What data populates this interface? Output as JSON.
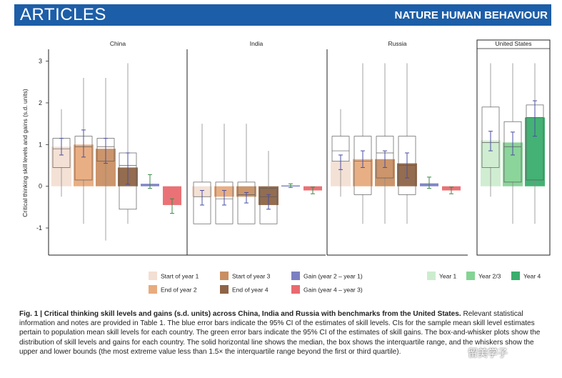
{
  "header": {
    "section": "ARTICLES",
    "journal": "NATURE HUMAN BEHAVIOUR"
  },
  "colors": {
    "header_bar": "#1d5ea8",
    "start_year_1": "#f3dfd3",
    "end_year_2": "#e8ab7d",
    "start_year_3": "#c98f63",
    "end_year_4": "#8e6446",
    "gain_1_2": "#7b80c1",
    "gain_4_3": "#e96a6f",
    "us_year_1": "#cdeccf",
    "us_year_2_3": "#85d395",
    "us_year_4": "#3aae6d",
    "ci_blue": "#4a4fa3",
    "ci_green": "#3a8a45"
  },
  "chart_data": {
    "type": "bar",
    "ylabel": "Critical thinking skill levels and gains (s.d. units)",
    "ylim": [
      -1.65,
      3.25
    ],
    "yticks": [
      -1,
      0,
      1,
      2,
      3
    ],
    "legend": [
      {
        "label": "Start of year 1",
        "key": "start_year_1"
      },
      {
        "label": "End of year 2",
        "key": "end_year_2"
      },
      {
        "label": "Start of year 3",
        "key": "start_year_3"
      },
      {
        "label": "End of year 4",
        "key": "end_year_4"
      },
      {
        "label": "Gain (year 2 – year 1)",
        "key": "gain_1_2"
      },
      {
        "label": "Gain (year 4 – year 3)",
        "key": "gain_4_3"
      },
      {
        "label": "Year 1",
        "key": "us_year_1"
      },
      {
        "label": "Year 2/3",
        "key": "us_year_2_3"
      },
      {
        "label": "Year 4",
        "key": "us_year_4"
      }
    ],
    "panels": [
      {
        "title": "China",
        "bars": [
          {
            "key": "start_year_1",
            "value": 0.95,
            "ci": [
              0.75,
              1.15
            ],
            "box": {
              "q1": 0.45,
              "median": 0.9,
              "q3": 1.15,
              "min": -0.25,
              "max": 1.85
            }
          },
          {
            "key": "end_year_2",
            "value": 1.0,
            "ci": [
              0.7,
              1.35
            ],
            "box": {
              "q1": 0.15,
              "median": 0.95,
              "q3": 1.2,
              "min": -0.9,
              "max": 2.6
            }
          },
          {
            "key": "start_year_3",
            "value": 0.9,
            "ci": [
              0.55,
              1.15
            ],
            "box": {
              "q1": 0.6,
              "median": 0.95,
              "q3": 1.15,
              "min": -1.3,
              "max": 2.6
            }
          },
          {
            "key": "end_year_4",
            "value": 0.45,
            "ci": [
              0.05,
              0.8
            ],
            "box": {
              "q1": -0.55,
              "median": 0.5,
              "q3": 0.8,
              "min": -0.9,
              "max": 2.95
            }
          },
          {
            "key": "gain_1_2",
            "value": 0.06,
            "ci": [
              -0.05,
              0.28
            ]
          },
          {
            "key": "gain_4_3",
            "value": -0.45,
            "ci": [
              -0.65,
              -0.3
            ]
          }
        ]
      },
      {
        "title": "India",
        "bars": [
          {
            "key": "start_year_1",
            "value": -0.25,
            "ci": [
              -0.45,
              -0.1
            ],
            "box": {
              "q1": -0.9,
              "median": -0.25,
              "q3": 0.1,
              "min": -0.9,
              "max": 1.5
            }
          },
          {
            "key": "end_year_2",
            "value": -0.25,
            "ci": [
              -0.45,
              -0.1
            ],
            "box": {
              "q1": -0.9,
              "median": -0.3,
              "q3": 0.1,
              "min": -0.9,
              "max": 1.5
            }
          },
          {
            "key": "start_year_3",
            "value": -0.25,
            "ci": [
              -0.4,
              -0.15
            ],
            "box": {
              "q1": -0.9,
              "median": -0.2,
              "q3": 0.1,
              "min": -0.9,
              "max": 1.5
            }
          },
          {
            "key": "end_year_4",
            "value": -0.45,
            "ci": [
              -0.55,
              -0.2
            ],
            "box": {
              "q1": -0.9,
              "median": -0.25,
              "q3": -0.05,
              "min": -0.9,
              "max": 0.85
            }
          },
          {
            "key": "gain_1_2",
            "value": 0.02,
            "ci": [
              -0.03,
              0.06
            ]
          },
          {
            "key": "gain_4_3",
            "value": -0.1,
            "ci": [
              -0.18,
              -0.02
            ]
          }
        ]
      },
      {
        "title": "Russia",
        "bars": [
          {
            "key": "start_year_1",
            "value": 0.6,
            "ci": [
              0.4,
              0.75
            ],
            "box": {
              "q1": 0.6,
              "median": 0.85,
              "q3": 1.2,
              "min": -0.25,
              "max": 1.85
            }
          },
          {
            "key": "end_year_2",
            "value": 0.65,
            "ci": [
              0.45,
              0.85
            ],
            "box": {
              "q1": -0.2,
              "median": 0.6,
              "q3": 1.2,
              "min": -0.9,
              "max": 2.95
            }
          },
          {
            "key": "start_year_3",
            "value": 0.65,
            "ci": [
              0.45,
              0.85
            ],
            "box": {
              "q1": 0.2,
              "median": 0.8,
              "q3": 1.2,
              "min": -0.9,
              "max": 2.95
            }
          },
          {
            "key": "end_year_4",
            "value": 0.55,
            "ci": [
              0.2,
              0.8
            ],
            "box": {
              "q1": -0.2,
              "median": 0.5,
              "q3": 1.2,
              "min": -0.9,
              "max": 2.95
            }
          },
          {
            "key": "gain_1_2",
            "value": 0.07,
            "ci": [
              -0.05,
              0.22
            ]
          },
          {
            "key": "gain_4_3",
            "value": -0.1,
            "ci": [
              -0.18,
              -0.02
            ]
          }
        ]
      },
      {
        "title": "United States",
        "bars": [
          {
            "key": "us_year_1",
            "value": 1.1,
            "ci": [
              0.85,
              1.32
            ],
            "box": {
              "q1": 0.45,
              "median": 1.05,
              "q3": 1.9,
              "min": -0.25,
              "max": 2.95
            }
          },
          {
            "key": "us_year_2_3",
            "value": 1.05,
            "ci": [
              0.75,
              1.3
            ],
            "box": {
              "q1": 0.1,
              "median": 0.95,
              "q3": 1.55,
              "min": -0.9,
              "max": 2.95
            }
          },
          {
            "key": "us_year_4",
            "value": 1.65,
            "ci": [
              1.2,
              2.05
            ],
            "box": {
              "q1": 0.15,
              "median": 1.65,
              "q3": 1.95,
              "min": -0.9,
              "max": 2.95
            }
          }
        ]
      }
    ]
  },
  "caption": {
    "bold": "Fig. 1 | Critical thinking skill levels and gains (s.d. units) across China, India and Russia with benchmarks from the United States.",
    "text": " Relevant statistical information and notes are provided in Table 1. The blue error bars indicate the 95% CI of the estimates of skill levels. CIs for the sample mean skill level estimates pertain to population mean skill levels for each country. The green error bars indicate the 95% CI of the estimates of skill gains. The box-and-whisker plots show the distribution of skill levels and gains for each country. The solid horizontal line shows the median, the box shows the interquartile range, and the whiskers show the upper and lower bounds (the most extreme value less than 1.5× the interquartile range beyond the first or third quartile)."
  },
  "watermark": "留美学子"
}
